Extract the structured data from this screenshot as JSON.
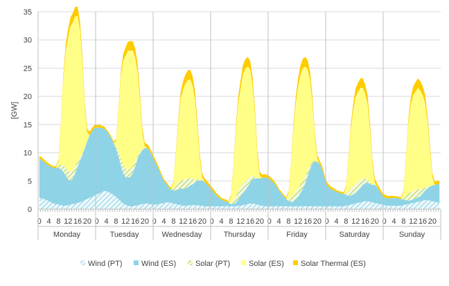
{
  "chart_data": {
    "type": "area",
    "stacked": true,
    "ylabel": "[GW]",
    "ylim": [
      0,
      35
    ],
    "yticks": [
      0,
      5,
      10,
      15,
      20,
      25,
      30,
      35
    ],
    "hour_tick_labels": [
      "0",
      "4",
      "8",
      "12",
      "16",
      "20"
    ],
    "days": [
      "Monday",
      "Tuesday",
      "Wednesday",
      "Thursday",
      "Friday",
      "Saturday",
      "Sunday"
    ],
    "grid": "horizontal",
    "legend_position": "bottom",
    "series": [
      {
        "name": "Wind (PT)",
        "color": "#8fd3e6",
        "pattern": "hatch",
        "values": [
          2.0,
          1.9,
          1.8,
          1.6,
          1.4,
          1.2,
          1.0,
          0.9,
          0.8,
          0.7,
          0.6,
          0.6,
          0.7,
          0.8,
          0.9,
          1.0,
          1.1,
          1.2,
          1.4,
          1.6,
          1.8,
          2.0,
          2.2,
          2.4,
          2.6,
          2.8,
          3.0,
          3.2,
          3.2,
          3.0,
          2.8,
          2.5,
          2.2,
          1.8,
          1.4,
          1.0,
          0.8,
          0.6,
          0.5,
          0.5,
          0.6,
          0.7,
          0.8,
          0.9,
          1.0,
          1.0,
          0.9,
          0.8,
          0.8,
          0.8,
          0.9,
          1.0,
          1.1,
          1.2,
          1.2,
          1.1,
          1.0,
          0.9,
          0.8,
          0.7,
          0.6,
          0.6,
          0.6,
          0.7,
          0.7,
          0.7,
          0.7,
          0.6,
          0.6,
          0.5,
          0.5,
          0.5,
          0.5,
          0.5,
          0.5,
          0.5,
          0.5,
          0.5,
          0.5,
          0.5,
          0.5,
          0.5,
          0.5,
          0.6,
          0.6,
          0.7,
          0.8,
          0.9,
          1.0,
          1.0,
          0.9,
          0.8,
          0.7,
          0.6,
          0.5,
          0.5,
          0.5,
          0.5,
          0.5,
          0.5,
          0.5,
          0.5,
          0.5,
          0.5,
          0.5,
          0.5,
          0.5,
          0.5,
          0.5,
          0.5,
          0.5,
          0.5,
          0.5,
          0.5,
          0.5,
          0.5,
          0.5,
          0.5,
          0.5,
          0.5,
          0.5,
          0.5,
          0.5,
          0.5,
          0.5,
          0.5,
          0.5,
          0.5,
          0.6,
          0.7,
          0.8,
          0.9,
          1.0,
          1.1,
          1.2,
          1.3,
          1.4,
          1.4,
          1.3,
          1.2,
          1.1,
          1.0,
          0.9,
          0.8,
          0.7,
          0.6,
          0.6,
          0.6,
          0.6,
          0.6,
          0.6,
          0.6,
          0.7,
          0.8,
          0.9,
          1.0,
          1.1,
          1.2,
          1.3,
          1.4,
          1.5,
          1.6,
          1.6,
          1.5,
          1.4,
          1.3,
          1.2,
          1.1
        ]
      },
      {
        "name": "Wind (ES)",
        "color": "#8fd3e6",
        "values": [
          7.0,
          6.8,
          6.6,
          6.4,
          6.3,
          6.3,
          6.3,
          6.4,
          6.5,
          6.4,
          6.0,
          5.4,
          4.6,
          4.2,
          4.5,
          5.4,
          6.4,
          7.4,
          8.2,
          9.2,
          10.3,
          11.1,
          11.6,
          12.0,
          11.8,
          11.7,
          11.4,
          11.1,
          10.7,
          10.3,
          9.8,
          9.2,
          8.6,
          7.6,
          6.4,
          5.4,
          4.9,
          5.0,
          5.2,
          5.9,
          6.9,
          8.2,
          9.0,
          9.6,
          9.8,
          9.9,
          9.5,
          8.7,
          7.9,
          7.0,
          6.0,
          4.9,
          3.9,
          3.3,
          2.7,
          2.4,
          2.3,
          2.5,
          2.7,
          3.0,
          3.0,
          3.1,
          3.3,
          3.5,
          3.7,
          4.0,
          4.3,
          4.5,
          4.5,
          4.3,
          3.9,
          3.4,
          2.9,
          2.4,
          1.9,
          1.5,
          1.2,
          1.0,
          0.9,
          0.6,
          0.4,
          0.4,
          0.6,
          1.1,
          1.7,
          2.2,
          2.6,
          3.1,
          3.7,
          4.3,
          4.5,
          4.6,
          4.8,
          4.9,
          5.1,
          5.1,
          4.9,
          4.5,
          4.1,
          3.5,
          2.8,
          2.3,
          1.8,
          1.3,
          1.0,
          0.8,
          0.8,
          1.2,
          1.7,
          2.4,
          3.1,
          4.1,
          5.4,
          6.7,
          7.5,
          8.0,
          7.9,
          7.5,
          6.6,
          5.1,
          3.8,
          3.3,
          3.0,
          2.8,
          2.6,
          2.4,
          2.3,
          2.2,
          1.9,
          1.7,
          1.6,
          1.7,
          1.9,
          2.2,
          2.6,
          3.0,
          3.2,
          3.3,
          3.2,
          3.1,
          3.2,
          2.9,
          2.3,
          1.7,
          1.4,
          1.3,
          1.3,
          1.4,
          1.4,
          1.4,
          1.3,
          1.2,
          1.0,
          0.8,
          0.6,
          0.6,
          0.6,
          0.7,
          0.8,
          0.9,
          1.3,
          1.7,
          2.1,
          2.5,
          2.8,
          3.0,
          3.2,
          3.4
        ]
      },
      {
        "name": "Solar (PT)",
        "color": "#c3df7a",
        "pattern": "hatch",
        "values": [
          0,
          0,
          0,
          0,
          0,
          0,
          0,
          0,
          0.3,
          0.8,
          1.2,
          1.5,
          1.6,
          1.6,
          1.5,
          1.3,
          1.0,
          0.6,
          0.3,
          0.1,
          0,
          0,
          0,
          0,
          0,
          0,
          0,
          0,
          0,
          0,
          0,
          0,
          0.3,
          0.8,
          1.2,
          1.4,
          1.5,
          1.5,
          1.4,
          1.2,
          0.9,
          0.5,
          0.2,
          0.1,
          0,
          0,
          0,
          0,
          0,
          0,
          0,
          0,
          0,
          0,
          0,
          0,
          0.3,
          0.8,
          1.2,
          1.4,
          1.6,
          1.6,
          1.5,
          1.3,
          1.0,
          0.6,
          0.3,
          0.1,
          0,
          0,
          0,
          0,
          0,
          0,
          0,
          0,
          0,
          0,
          0,
          0,
          0.3,
          0.8,
          1.2,
          1.5,
          1.6,
          1.6,
          1.5,
          1.3,
          1.0,
          0.6,
          0.3,
          0.1,
          0,
          0,
          0,
          0,
          0,
          0,
          0,
          0,
          0,
          0,
          0,
          0,
          0.3,
          0.8,
          1.2,
          1.4,
          1.5,
          1.5,
          1.4,
          1.2,
          0.9,
          0.6,
          0.3,
          0.1,
          0,
          0,
          0,
          0,
          0,
          0,
          0,
          0,
          0,
          0,
          0,
          0,
          0.3,
          0.8,
          1.2,
          1.4,
          1.5,
          1.5,
          1.4,
          1.2,
          0.9,
          0.5,
          0.2,
          0.1,
          0,
          0,
          0,
          0,
          0,
          0,
          0,
          0,
          0,
          0,
          0,
          0,
          0.3,
          0.8,
          1.2,
          1.4,
          1.5,
          1.5,
          1.4,
          1.2,
          0.9,
          0.5,
          0.2,
          0.1,
          0,
          0,
          0,
          0
        ]
      },
      {
        "name": "Solar (ES)",
        "color": "#ffff88",
        "values": [
          0,
          0,
          0,
          0,
          0,
          0,
          0,
          0,
          1.0,
          7.0,
          15.0,
          20.5,
          23.5,
          25.8,
          26.2,
          26.5,
          25.8,
          22.5,
          16.0,
          7.0,
          1.5,
          0,
          0,
          0,
          0,
          0,
          0,
          0,
          0,
          0,
          0,
          0,
          1.0,
          7.0,
          14.5,
          18.5,
          20.0,
          21.0,
          21.0,
          20.5,
          18.5,
          15.0,
          9.5,
          3.0,
          0.3,
          0,
          0,
          0,
          0,
          0,
          0,
          0,
          0,
          0,
          0,
          0,
          1.0,
          5.5,
          10.5,
          14.5,
          16.0,
          17.0,
          17.5,
          17.5,
          16.5,
          14.0,
          9.0,
          3.5,
          0.5,
          0,
          0,
          0,
          0,
          0,
          0,
          0,
          0,
          0,
          0,
          0,
          1.0,
          5.5,
          11.5,
          15.5,
          17.5,
          19.5,
          20.0,
          20.0,
          19.0,
          16.0,
          11.0,
          4.0,
          0.5,
          0,
          0,
          0,
          0,
          0,
          0,
          0,
          0,
          0,
          0,
          0,
          1.0,
          5.5,
          11.5,
          15.5,
          18.0,
          19.5,
          20.0,
          19.5,
          18.0,
          15.0,
          10.5,
          4.0,
          0.5,
          0,
          0,
          0,
          0,
          0,
          0,
          0,
          0,
          0,
          0,
          0,
          1.0,
          5.5,
          10.5,
          13.5,
          15.5,
          16.0,
          16.3,
          16.0,
          15.0,
          13.5,
          9.5,
          3.5,
          0.5,
          0,
          0,
          0,
          0,
          0,
          0,
          0,
          0,
          0,
          0,
          0,
          1.0,
          6.0,
          12.5,
          15.5,
          17.0,
          17.5,
          18.0,
          17.5,
          16.5,
          15.0,
          11.5,
          6.5,
          1.5,
          0,
          0,
          0
        ]
      },
      {
        "name": "Solar Thermal (ES)",
        "color": "#ffcc00",
        "values": [
          0.5,
          0.5,
          0.4,
          0.4,
          0.4,
          0.3,
          0.3,
          0.3,
          0.3,
          0.5,
          0.8,
          1.2,
          1.5,
          1.6,
          1.7,
          1.7,
          1.6,
          1.5,
          1.2,
          0.9,
          0.7,
          0.6,
          0.6,
          0.5,
          0.5,
          0.5,
          0.4,
          0.4,
          0.3,
          0.3,
          0.3,
          0.3,
          0.3,
          0.5,
          0.8,
          1.2,
          1.5,
          1.6,
          1.7,
          1.7,
          1.6,
          1.5,
          1.2,
          0.9,
          0.7,
          0.6,
          0.6,
          0.5,
          0.5,
          0.5,
          0.4,
          0.4,
          0.3,
          0.3,
          0.3,
          0.3,
          0.3,
          0.5,
          0.8,
          1.2,
          1.5,
          1.6,
          1.7,
          1.7,
          1.6,
          1.5,
          1.2,
          0.9,
          0.7,
          0.6,
          0.6,
          0.5,
          0.5,
          0.5,
          0.4,
          0.4,
          0.3,
          0.3,
          0.3,
          0.3,
          0.3,
          0.5,
          0.8,
          1.2,
          1.5,
          1.6,
          1.7,
          1.7,
          1.6,
          1.5,
          1.2,
          0.9,
          0.7,
          0.6,
          0.6,
          0.5,
          0.5,
          0.5,
          0.4,
          0.4,
          0.3,
          0.3,
          0.3,
          0.3,
          0.3,
          0.5,
          0.8,
          1.2,
          1.5,
          1.6,
          1.7,
          1.7,
          1.6,
          1.5,
          1.2,
          0.9,
          0.7,
          0.6,
          0.6,
          0.5,
          0.5,
          0.5,
          0.4,
          0.4,
          0.3,
          0.3,
          0.3,
          0.3,
          0.3,
          0.5,
          0.8,
          1.2,
          1.5,
          1.6,
          1.7,
          1.7,
          1.6,
          1.5,
          1.2,
          0.9,
          0.7,
          0.6,
          0.6,
          0.5,
          0.5,
          0.5,
          0.4,
          0.4,
          0.3,
          0.3,
          0.3,
          0.3,
          0.3,
          0.5,
          0.8,
          1.2,
          1.5,
          1.6,
          1.7,
          1.7,
          1.6,
          1.5,
          1.2,
          0.9,
          0.7,
          0.6,
          0.6,
          0.5
        ]
      }
    ]
  }
}
